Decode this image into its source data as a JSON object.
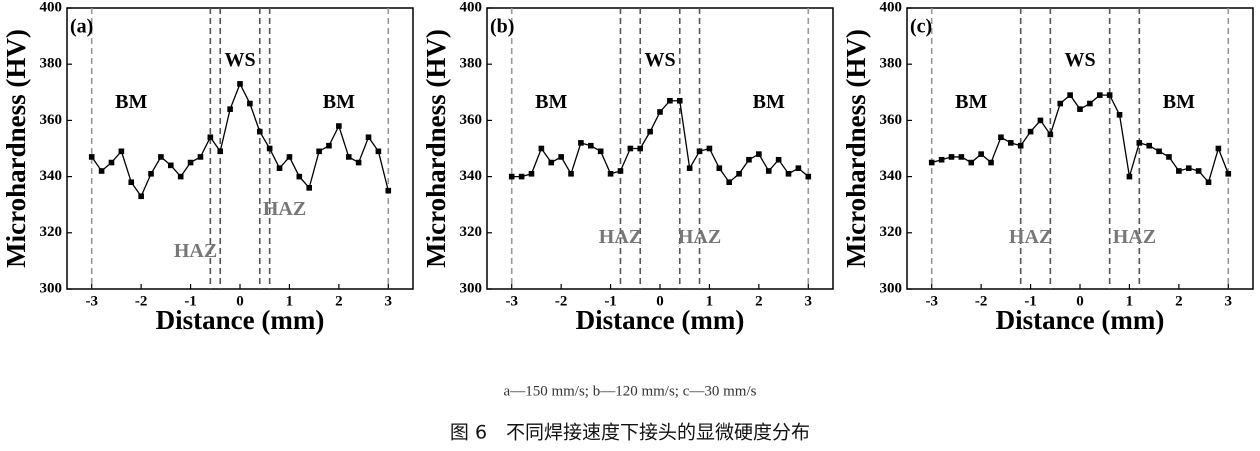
{
  "chart_data": [
    {
      "type": "line",
      "panel": "(a)",
      "xlabel": "Distance (mm)",
      "ylabel": "Microhardness (HV)",
      "color": "#000000",
      "x": [
        -3,
        -2.8,
        -2.6,
        -2.4,
        -2.2,
        -2,
        -1.8,
        -1.6,
        -1.4,
        -1.2,
        -1,
        -0.8,
        -0.6,
        -0.4,
        -0.2,
        0,
        0.2,
        0.4,
        0.6,
        0.8,
        1,
        1.2,
        1.4,
        1.6,
        1.8,
        2,
        2.2,
        2.4,
        2.6,
        2.8,
        3
      ],
      "values": [
        347,
        342,
        345,
        349,
        338,
        333,
        341,
        347,
        344,
        340,
        345,
        347,
        354,
        349,
        364,
        373,
        366,
        356,
        350,
        343,
        347,
        340,
        336,
        349,
        351,
        358,
        347,
        345,
        354,
        349,
        335
      ],
      "xlim": [
        -3.5,
        3.5
      ],
      "ylim": [
        300,
        400
      ],
      "xticks": [
        -3,
        -2,
        -1,
        0,
        1,
        2,
        3
      ],
      "yticks": [
        300,
        320,
        340,
        360,
        380,
        400
      ],
      "vlines": [
        -3,
        -0.6,
        -0.4,
        0.4,
        0.6,
        3
      ],
      "annotations": [
        {
          "text": "BM",
          "x": -2.2,
          "y": 366
        },
        {
          "text": "WS",
          "x": 0,
          "y": 381
        },
        {
          "text": "BM",
          "x": 2,
          "y": 366
        },
        {
          "text": "HAZ",
          "x": -0.9,
          "y": 313
        },
        {
          "text": "HAZ",
          "x": 0.9,
          "y": 328
        }
      ]
    },
    {
      "type": "line",
      "panel": "(b)",
      "xlabel": "Distance (mm)",
      "ylabel": "Microhardness (HV)",
      "color": "#000000",
      "x": [
        -3,
        -2.8,
        -2.6,
        -2.4,
        -2.2,
        -2,
        -1.8,
        -1.6,
        -1.4,
        -1.2,
        -1,
        -0.8,
        -0.6,
        -0.4,
        -0.2,
        0,
        0.2,
        0.4,
        0.6,
        0.8,
        1,
        1.2,
        1.4,
        1.6,
        1.8,
        2,
        2.2,
        2.4,
        2.6,
        2.8,
        3
      ],
      "values": [
        340,
        340,
        341,
        350,
        345,
        347,
        341,
        352,
        351,
        349,
        341,
        342,
        350,
        350,
        356,
        363,
        367,
        367,
        343,
        349,
        350,
        343,
        338,
        341,
        346,
        348,
        342,
        346,
        341,
        343,
        340
      ],
      "xlim": [
        -3.5,
        3.5
      ],
      "ylim": [
        300,
        400
      ],
      "xticks": [
        -3,
        -2,
        -1,
        0,
        1,
        2,
        3
      ],
      "yticks": [
        300,
        320,
        340,
        360,
        380,
        400
      ],
      "vlines": [
        -3,
        -0.8,
        -0.4,
        0.4,
        0.8,
        3
      ],
      "annotations": [
        {
          "text": "BM",
          "x": -2.2,
          "y": 366
        },
        {
          "text": "WS",
          "x": 0,
          "y": 381
        },
        {
          "text": "BM",
          "x": 2.2,
          "y": 366
        },
        {
          "text": "HAZ",
          "x": -0.8,
          "y": 318
        },
        {
          "text": "HAZ",
          "x": 0.8,
          "y": 318
        }
      ]
    },
    {
      "type": "line",
      "panel": "(c)",
      "xlabel": "Distance (mm)",
      "ylabel": "Microhardness (HV)",
      "color": "#000000",
      "x": [
        -3,
        -2.8,
        -2.6,
        -2.4,
        -2.2,
        -2,
        -1.8,
        -1.6,
        -1.4,
        -1.2,
        -1,
        -0.8,
        -0.6,
        -0.4,
        -0.2,
        0,
        0.2,
        0.4,
        0.6,
        0.8,
        1,
        1.2,
        1.4,
        1.6,
        1.8,
        2,
        2.2,
        2.4,
        2.6,
        2.8,
        3
      ],
      "values": [
        345,
        346,
        347,
        347,
        345,
        348,
        345,
        354,
        352,
        351,
        356,
        360,
        355,
        366,
        369,
        364,
        366,
        369,
        369,
        362,
        340,
        352,
        351,
        349,
        347,
        342,
        343,
        342,
        338,
        350,
        341
      ],
      "xlim": [
        -3.5,
        3.5
      ],
      "ylim": [
        300,
        400
      ],
      "xticks": [
        -3,
        -2,
        -1,
        0,
        1,
        2,
        3
      ],
      "yticks": [
        300,
        320,
        340,
        360,
        380,
        400
      ],
      "vlines": [
        -3,
        -1.2,
        -0.6,
        0.6,
        1.2,
        3
      ],
      "annotations": [
        {
          "text": "BM",
          "x": -2.2,
          "y": 366
        },
        {
          "text": "WS",
          "x": 0,
          "y": 381
        },
        {
          "text": "BM",
          "x": 2,
          "y": 366
        },
        {
          "text": "HAZ",
          "x": -1,
          "y": 318
        },
        {
          "text": "HAZ",
          "x": 1.1,
          "y": 318
        }
      ]
    }
  ],
  "caption": {
    "speeds": "a—150 mm/s;  b—120 mm/s;  c—30 mm/s",
    "title": "图 6　不同焊接速度下接头的显微硬度分布"
  }
}
